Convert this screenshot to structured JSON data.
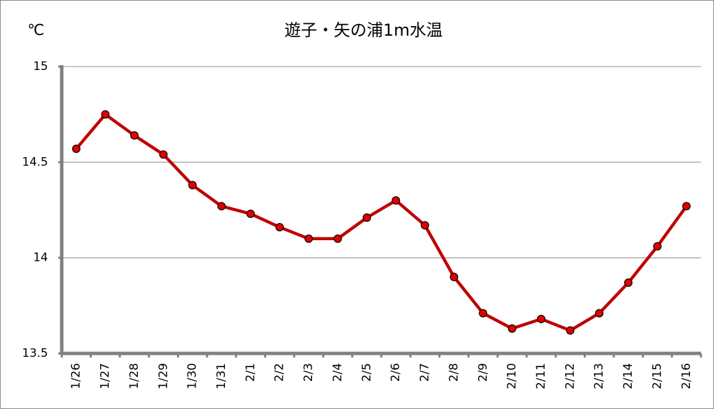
{
  "chart_data": {
    "type": "line",
    "title": "遊子・矢の浦1m水温",
    "y_label": "℃",
    "categories": [
      "1/26",
      "1/27",
      "1/28",
      "1/29",
      "1/30",
      "1/31",
      "2/1",
      "2/2",
      "2/3",
      "2/4",
      "2/5",
      "2/6",
      "2/7",
      "2/8",
      "2/9",
      "2/10",
      "2/11",
      "2/12",
      "2/13",
      "2/14",
      "2/15",
      "2/16"
    ],
    "series": [
      {
        "name": "1m水温",
        "color": "#c00000",
        "values": [
          14.57,
          14.75,
          14.64,
          14.54,
          14.38,
          14.27,
          14.23,
          14.16,
          14.1,
          14.1,
          14.21,
          14.3,
          14.17,
          13.9,
          13.71,
          13.63,
          13.68,
          13.62,
          13.71,
          13.87,
          14.06,
          14.27
        ]
      }
    ],
    "ylim": [
      13.5,
      15
    ],
    "yticks": [
      13.5,
      14,
      14.5,
      15
    ],
    "grid": true
  }
}
